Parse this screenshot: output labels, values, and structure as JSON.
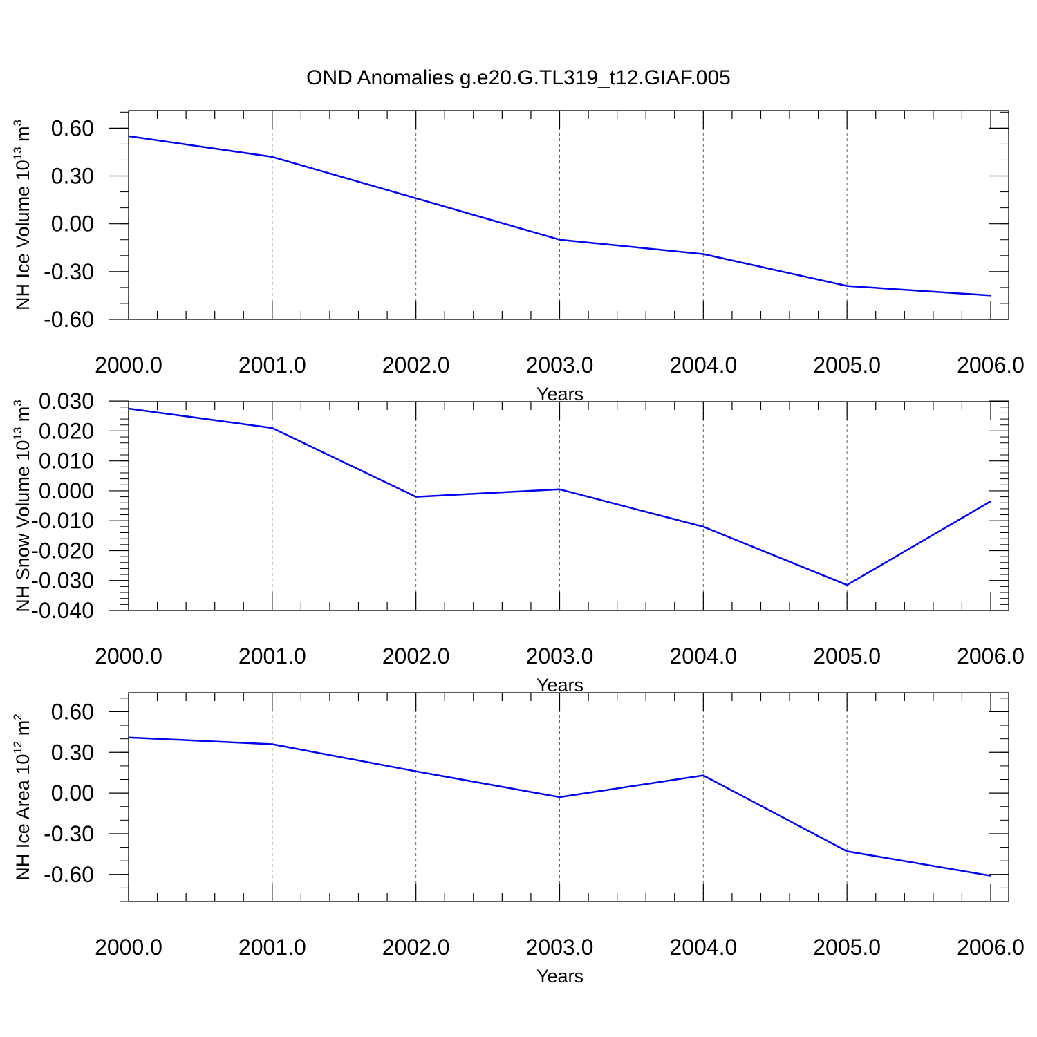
{
  "title": "OND Anomalies g.e20.G.TL319_t12.GIAF.005",
  "chart_data": [
    {
      "type": "line",
      "ylabel": {
        "text": "NH Ice Volume 10",
        "exponent": "13",
        "unit": "m",
        "unit_exponent": "3"
      },
      "xlabel": "Years",
      "x": [
        2000,
        2001,
        2002,
        2003,
        2004,
        2005,
        2006
      ],
      "x_tick_labels": [
        "2000.0",
        "2001.0",
        "2002.0",
        "2003.0",
        "2004.0",
        "2005.0",
        "2006.0"
      ],
      "xlim": [
        2000,
        2006.12
      ],
      "ylim": [
        -0.6,
        0.71
      ],
      "y_ticks": [
        0.6,
        0.3,
        0.0,
        -0.3,
        -0.6
      ],
      "y_tick_labels": [
        "0.60",
        "0.30",
        "0.00",
        "-0.30",
        "-0.60"
      ],
      "y_minor_step": 0.1,
      "series": [
        {
          "values": [
            0.55,
            0.42,
            0.16,
            -0.1,
            -0.19,
            -0.39,
            -0.45
          ],
          "color": "#0000ee"
        }
      ]
    },
    {
      "type": "line",
      "ylabel": {
        "text": "NH Snow Volume 10",
        "exponent": "13",
        "unit": "m",
        "unit_exponent": "3"
      },
      "xlabel": "Years",
      "x": [
        2000,
        2001,
        2002,
        2003,
        2004,
        2005,
        2006
      ],
      "x_tick_labels": [
        "2000.0",
        "2001.0",
        "2002.0",
        "2003.0",
        "2004.0",
        "2005.0",
        "2006.0"
      ],
      "xlim": [
        2000,
        2006.12
      ],
      "ylim": [
        -0.04,
        0.0298
      ],
      "y_ticks": [
        0.03,
        0.02,
        0.01,
        0.0,
        -0.01,
        -0.02,
        -0.03,
        -0.04
      ],
      "y_tick_labels": [
        "0.030",
        "0.020",
        "0.010",
        "0.000",
        "-0.010",
        "-0.020",
        "-0.030",
        "-0.040"
      ],
      "y_minor_step": 0.002,
      "series": [
        {
          "values": [
            0.0275,
            0.021,
            -0.002,
            0.0005,
            -0.012,
            -0.0315,
            -0.0035
          ],
          "color": "#0000ee"
        }
      ]
    },
    {
      "type": "line",
      "ylabel": {
        "text": "NH Ice Area 10",
        "exponent": "12",
        "unit": "m",
        "unit_exponent": "2"
      },
      "xlabel": "Years",
      "x": [
        2000,
        2001,
        2002,
        2003,
        2004,
        2005,
        2006
      ],
      "x_tick_labels": [
        "2000.0",
        "2001.0",
        "2002.0",
        "2003.0",
        "2004.0",
        "2005.0",
        "2006.0"
      ],
      "xlim": [
        2000,
        2006.12
      ],
      "ylim": [
        -0.8,
        0.74
      ],
      "y_ticks": [
        0.6,
        0.3,
        0.0,
        -0.3,
        -0.6
      ],
      "y_tick_labels": [
        "0.60",
        "0.30",
        "0.00",
        "-0.30",
        "-0.60"
      ],
      "y_minor_step": 0.1,
      "series": [
        {
          "values": [
            0.41,
            0.36,
            0.16,
            -0.03,
            0.13,
            -0.43,
            -0.61
          ],
          "color": "#0000ee"
        }
      ]
    }
  ]
}
